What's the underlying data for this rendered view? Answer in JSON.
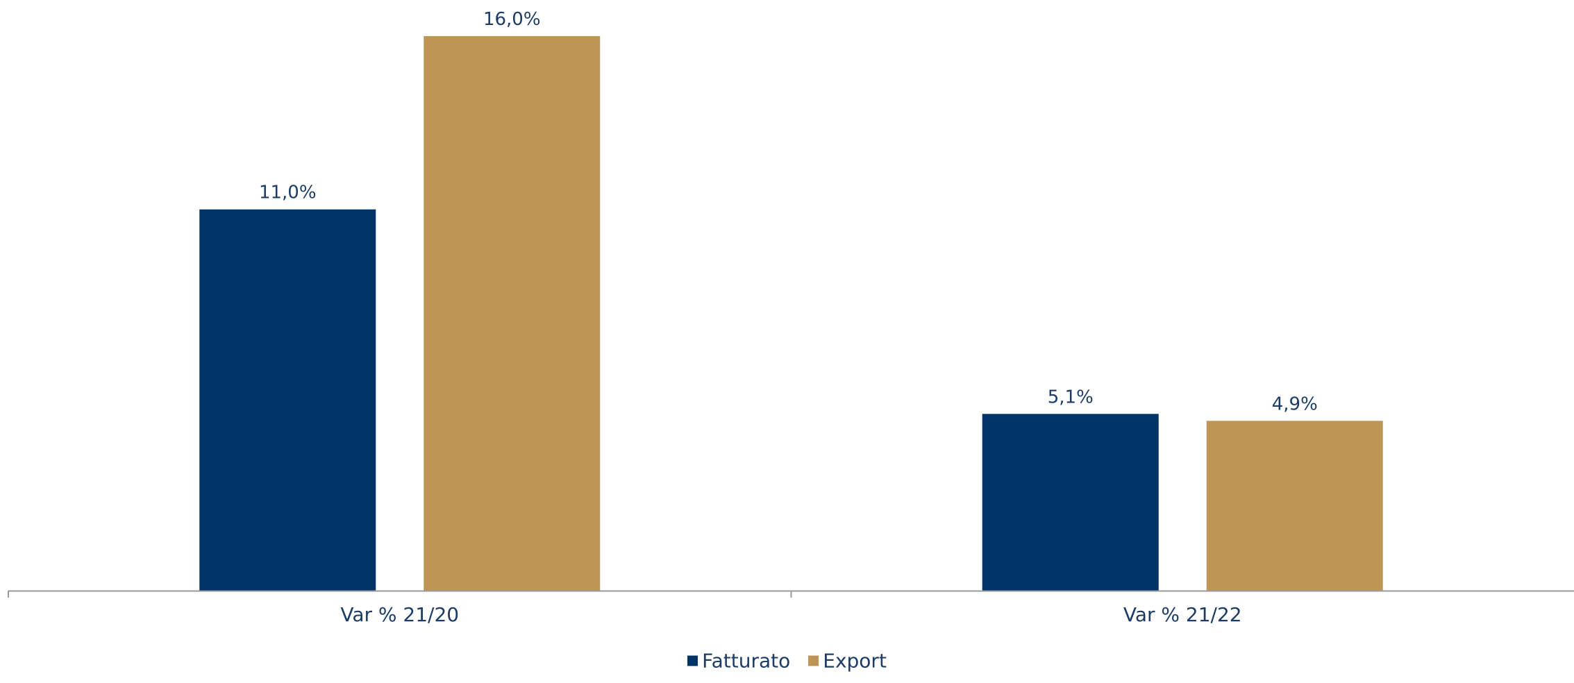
{
  "chart_data": {
    "type": "bar",
    "categories": [
      "Var % 21/20",
      "Var % 21/22"
    ],
    "series": [
      {
        "name": "Fatturato",
        "color": "#003366",
        "values": [
          11.0,
          5.1
        ],
        "labels": [
          "11,0%",
          "5,1%"
        ]
      },
      {
        "name": "Export",
        "color": "#bd9555",
        "values": [
          16.0,
          4.9
        ],
        "labels": [
          "16,0%",
          "4,9%"
        ]
      }
    ],
    "ylim": [
      0,
      16.0
    ],
    "grid": false,
    "legend_position": "bottom",
    "title": "",
    "xlabel": "",
    "ylabel": ""
  }
}
